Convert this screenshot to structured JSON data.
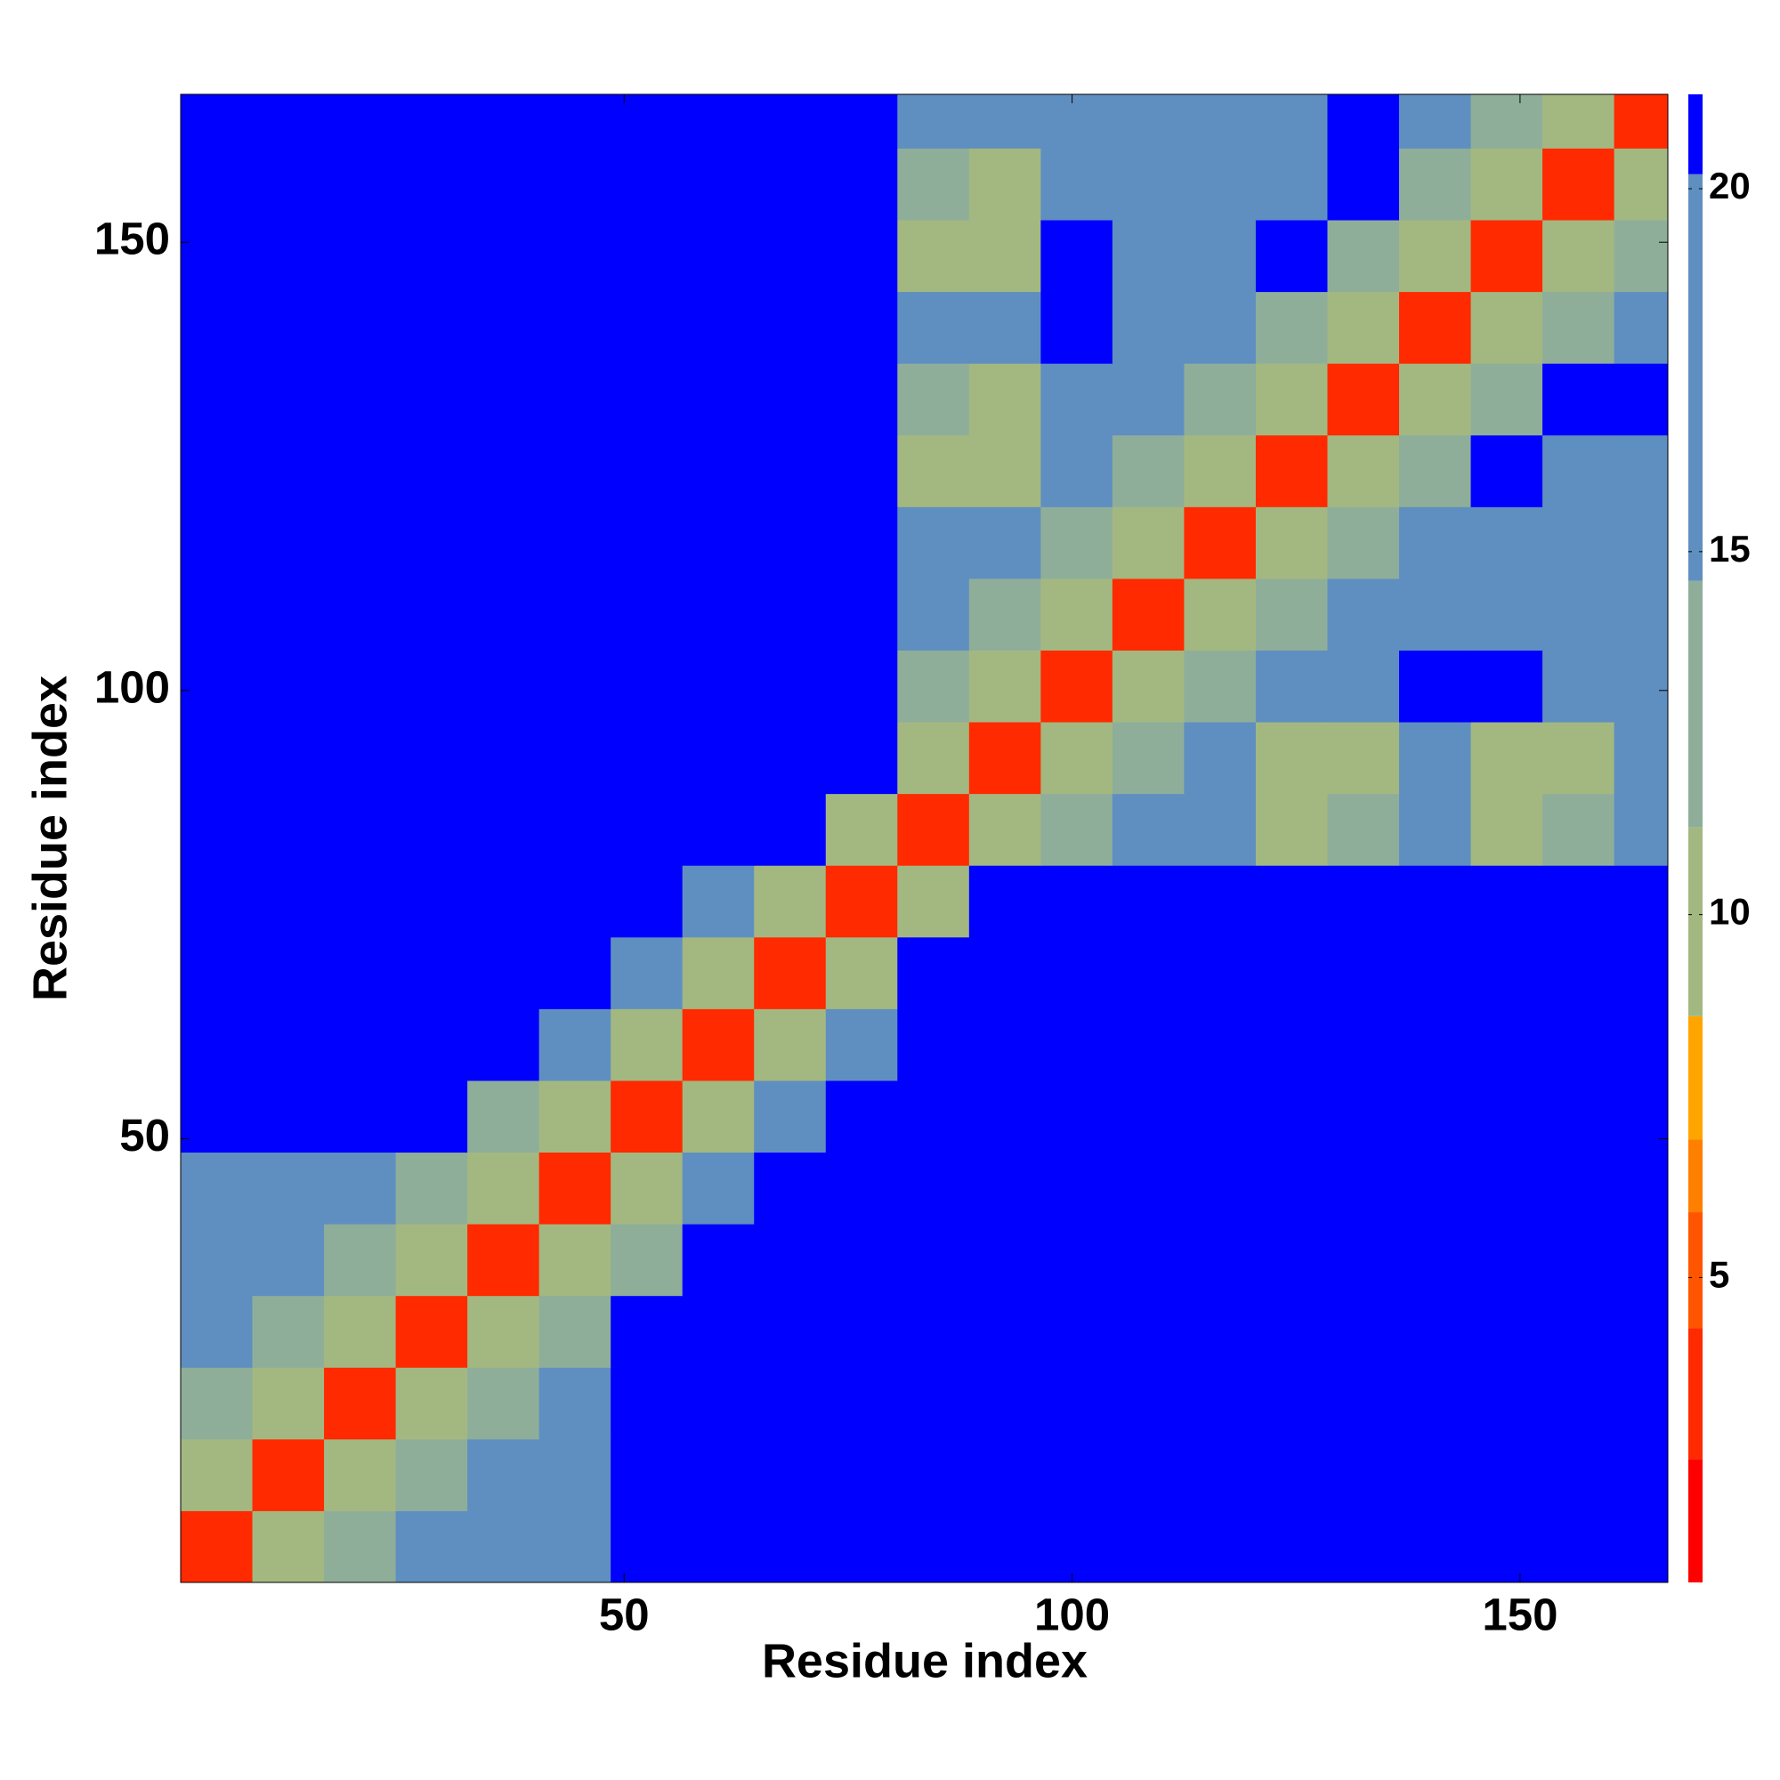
{
  "chart_data": {
    "type": "heatmap",
    "xlabel": "Residue index",
    "ylabel": "Residue index",
    "xlim": [
      0.5,
      166.5
    ],
    "ylim": [
      0.5,
      166.5
    ],
    "xticks": [
      50,
      100,
      150
    ],
    "yticks": [
      50,
      100,
      150
    ],
    "bins": [
      0.5,
      8.5,
      16.5,
      24.5,
      32.5,
      40.5,
      48.5,
      56.5,
      64.5,
      72.5,
      80.5,
      88.5,
      96.5,
      104.5,
      112.5,
      120.5,
      128.5,
      136.5,
      144.5,
      152.5,
      160.5,
      166.5
    ],
    "z": [
      [
        4,
        9,
        14,
        16,
        18,
        19,
        25,
        25,
        25,
        25,
        25,
        25,
        25,
        25,
        25,
        25,
        25,
        25,
        25,
        25,
        25
      ],
      [
        9,
        4,
        9,
        14,
        16,
        18,
        25,
        25,
        25,
        25,
        25,
        25,
        25,
        25,
        25,
        25,
        25,
        25,
        25,
        25,
        25
      ],
      [
        14,
        9,
        4,
        9,
        14,
        16,
        22,
        25,
        25,
        25,
        25,
        25,
        25,
        25,
        25,
        25,
        25,
        25,
        25,
        25,
        25
      ],
      [
        16,
        14,
        9,
        4,
        9,
        14,
        22,
        25,
        25,
        25,
        25,
        25,
        25,
        25,
        25,
        25,
        25,
        25,
        25,
        25,
        25
      ],
      [
        18,
        16,
        14,
        9,
        4,
        9,
        14,
        22,
        25,
        25,
        25,
        25,
        25,
        25,
        25,
        25,
        25,
        25,
        25,
        25,
        25
      ],
      [
        19,
        18,
        16,
        14,
        9,
        4,
        9,
        16,
        22,
        25,
        25,
        25,
        25,
        25,
        25,
        25,
        25,
        25,
        25,
        25,
        25
      ],
      [
        25,
        25,
        22,
        22,
        14,
        9,
        4,
        9,
        17,
        22,
        25,
        25,
        25,
        25,
        25,
        25,
        25,
        25,
        25,
        25,
        25
      ],
      [
        25,
        25,
        25,
        25,
        22,
        16,
        9,
        4,
        9,
        17,
        25,
        25,
        25,
        25,
        25,
        25,
        25,
        25,
        25,
        25,
        25
      ],
      [
        25,
        25,
        25,
        25,
        25,
        22,
        17,
        9,
        4,
        10,
        25,
        25,
        25,
        25,
        25,
        25,
        25,
        25,
        25,
        25,
        25
      ],
      [
        25,
        25,
        25,
        25,
        25,
        25,
        22,
        17,
        10,
        4,
        10,
        21,
        25,
        25,
        25,
        25,
        25,
        25,
        25,
        25,
        25
      ],
      [
        25,
        25,
        25,
        25,
        25,
        25,
        25,
        25,
        25,
        10,
        4,
        9,
        13,
        16,
        15,
        11,
        12,
        15,
        10,
        12,
        19
      ],
      [
        25,
        25,
        25,
        25,
        25,
        25,
        25,
        25,
        25,
        21,
        9,
        4,
        9,
        13,
        15,
        10,
        11,
        16,
        9,
        11,
        17
      ],
      [
        25,
        25,
        25,
        25,
        25,
        25,
        25,
        25,
        25,
        25,
        13,
        9,
        4,
        9,
        13,
        16,
        17,
        22,
        21,
        17,
        18
      ],
      [
        25,
        25,
        25,
        25,
        25,
        25,
        25,
        25,
        25,
        25,
        16,
        13,
        9,
        4,
        9,
        13,
        16,
        16,
        17,
        16,
        17
      ],
      [
        25,
        25,
        25,
        25,
        25,
        25,
        25,
        25,
        25,
        25,
        15,
        15,
        13,
        9,
        4,
        9,
        13,
        15,
        17,
        16,
        17
      ],
      [
        25,
        25,
        25,
        25,
        25,
        25,
        25,
        25,
        25,
        25,
        11,
        10,
        16,
        13,
        9,
        4,
        9,
        13,
        21,
        18,
        18
      ],
      [
        25,
        25,
        25,
        25,
        25,
        25,
        25,
        25,
        25,
        25,
        12,
        11,
        17,
        16,
        13,
        9,
        4,
        9,
        13,
        21,
        22
      ],
      [
        25,
        25,
        25,
        25,
        25,
        25,
        25,
        25,
        25,
        25,
        15,
        16,
        22,
        16,
        15,
        13,
        9,
        4,
        9,
        13,
        15
      ],
      [
        25,
        25,
        25,
        25,
        25,
        25,
        25,
        25,
        25,
        25,
        10,
        9,
        21,
        17,
        17,
        21,
        13,
        9,
        4,
        9,
        13
      ],
      [
        25,
        25,
        25,
        25,
        25,
        25,
        25,
        25,
        25,
        25,
        12,
        11,
        17,
        16,
        16,
        18,
        21,
        13,
        9,
        4,
        9
      ],
      [
        25,
        25,
        25,
        25,
        25,
        25,
        25,
        25,
        25,
        25,
        19,
        17,
        18,
        17,
        17,
        18,
        22,
        15,
        13,
        9,
        4
      ]
    ],
    "clim": [
      0.8,
      21.3
    ],
    "cticks": [
      5,
      10,
      15,
      20
    ],
    "colorscale": [
      {
        "value": 2.5,
        "color": "#ff0000"
      },
      {
        "value": 4.3,
        "color": "#ff2a00"
      },
      {
        "value": 5.9,
        "color": "#ff5500"
      },
      {
        "value": 6.9,
        "color": "#ff7f00"
      },
      {
        "value": 8.6,
        "color": "#ffa500"
      },
      {
        "value": 11.2,
        "color": "#a3b880"
      },
      {
        "value": 14.6,
        "color": "#8fae9a"
      },
      {
        "value": 20.2,
        "color": "#5f8fc0"
      },
      {
        "value": 21.3,
        "color": "#0000ff"
      }
    ]
  }
}
